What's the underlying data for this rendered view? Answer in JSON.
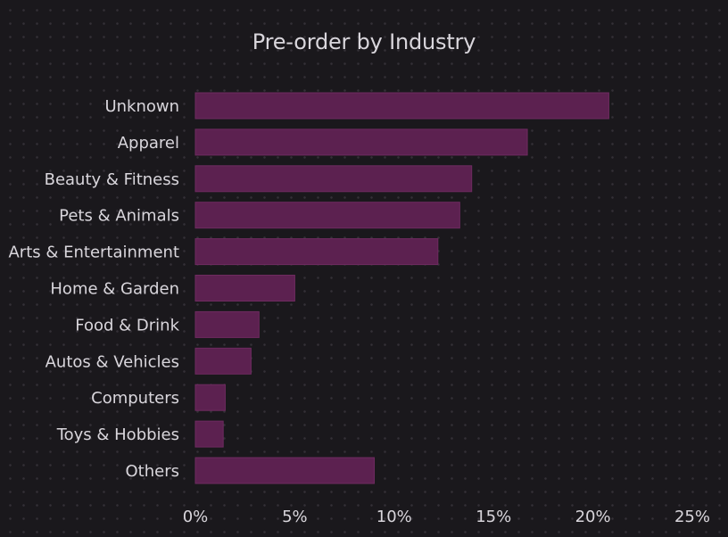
{
  "chart_data": {
    "type": "bar",
    "orientation": "horizontal",
    "title": "Pre-order by Industry",
    "xlabel": "",
    "ylabel": "",
    "categories": [
      "Unknown",
      "Apparel",
      "Beauty & Fitness",
      "Pets & Animals",
      "Arts & Entertainment",
      "Home & Garden",
      "Food & Drink",
      "Autos & Vehicles",
      "Computers",
      "Toys & Hobbies",
      "Others"
    ],
    "values": [
      20.8,
      16.7,
      13.9,
      13.3,
      12.2,
      5.0,
      3.2,
      2.8,
      1.5,
      1.4,
      9.0
    ],
    "xlim": [
      0,
      25
    ],
    "xticks": [
      "0%",
      "5%",
      "10%",
      "15%",
      "20%",
      "25%"
    ],
    "grid": false,
    "legend": "none"
  },
  "colors": {
    "background": "#1a181c",
    "dot_grid": "#333036",
    "bar_fill": "#5c2150",
    "bar_stroke": "#6e2b60",
    "text": "#d9d6dc"
  }
}
